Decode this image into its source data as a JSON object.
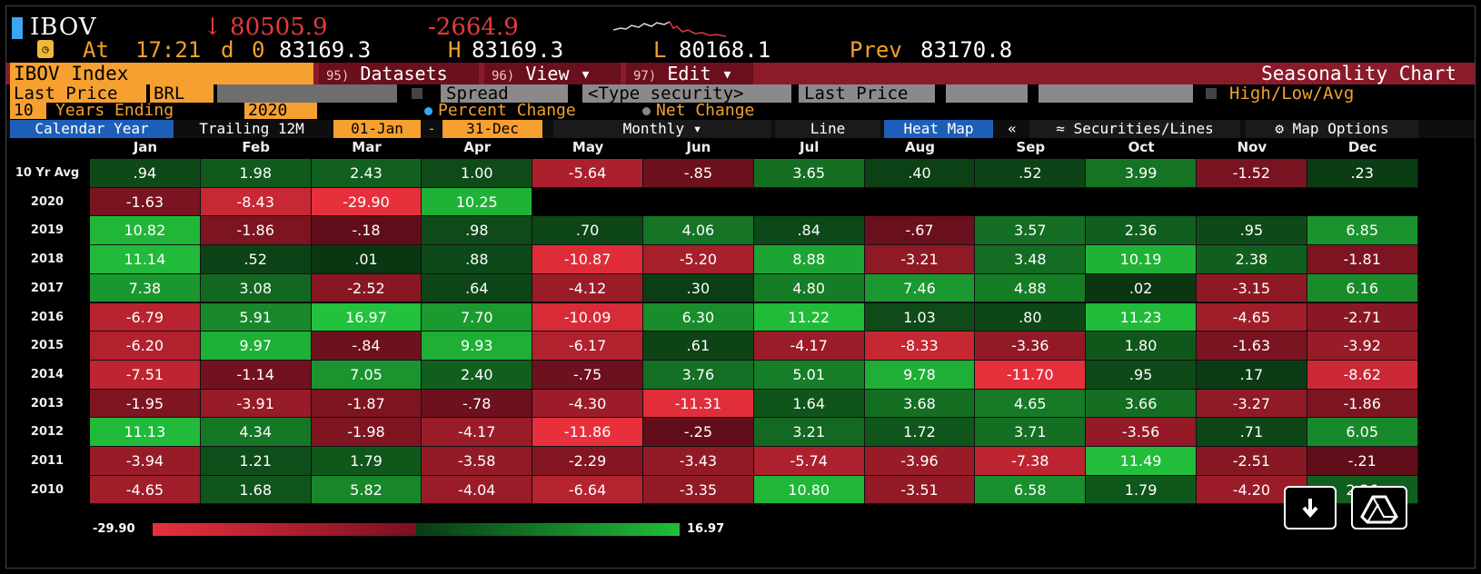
{
  "header": {
    "ticker": "IBOV",
    "last_value": "↓ 80505.9",
    "net_change": "-2664.9",
    "at_label": "At",
    "time": "17:21",
    "d_label": "d",
    "d_value": "0",
    "open_value": "83169.3",
    "high_label": "H",
    "high_value": "83169.3",
    "low_label": "L",
    "low_value": "80168.1",
    "prev_label": "Prev",
    "prev_value": "83170.8"
  },
  "toolbar": {
    "index_name": "IBOV Index",
    "datasets_num": "95)",
    "datasets": "Datasets",
    "view_num": "96)",
    "view": "View ▾",
    "edit_num": "97)",
    "edit": "Edit ▾",
    "chart_title": "Seasonality Chart",
    "last_price": "Last Price",
    "currency": "BRL",
    "spread": "Spread",
    "type_security": "<Type security>",
    "last_price_2": "Last Price",
    "high_low_avg": "High/Low/Avg",
    "years_count": "10",
    "years_ending": "Years Ending",
    "year_end": "2020",
    "percent_change": "Percent Change",
    "net_change_opt": "Net Change",
    "calendar_year": "Calendar Year",
    "trailing": "Trailing 12M",
    "date_from": "01-Jan",
    "date_sep": "-",
    "date_to": "31-Dec",
    "monthly": "Monthly ▾",
    "line": "Line",
    "heat_map": "Heat Map",
    "collapse": "«",
    "securities_lines": "Securities/Lines",
    "map_options": "Map Options"
  },
  "chart_data": {
    "type": "heatmap",
    "columns": [
      "Jan",
      "Feb",
      "Mar",
      "Apr",
      "May",
      "Jun",
      "Jul",
      "Aug",
      "Sep",
      "Oct",
      "Nov",
      "Dec"
    ],
    "rows": [
      {
        "label": "10 Yr Avg",
        "values": [
          ".94",
          "1.98",
          "2.43",
          "1.00",
          "-5.64",
          "-.85",
          "3.65",
          ".40",
          ".52",
          "3.99",
          "-1.52",
          ".23"
        ]
      },
      {
        "label": "2020",
        "values": [
          "-1.63",
          "-8.43",
          "-29.90",
          "10.25",
          null,
          null,
          null,
          null,
          null,
          null,
          null,
          null
        ]
      },
      {
        "label": "2019",
        "values": [
          "10.82",
          "-1.86",
          "-.18",
          ".98",
          ".70",
          "4.06",
          ".84",
          "-.67",
          "3.57",
          "2.36",
          ".95",
          "6.85"
        ]
      },
      {
        "label": "2018",
        "values": [
          "11.14",
          ".52",
          ".01",
          ".88",
          "-10.87",
          "-5.20",
          "8.88",
          "-3.21",
          "3.48",
          "10.19",
          "2.38",
          "-1.81"
        ]
      },
      {
        "label": "2017",
        "values": [
          "7.38",
          "3.08",
          "-2.52",
          ".64",
          "-4.12",
          ".30",
          "4.80",
          "7.46",
          "4.88",
          ".02",
          "-3.15",
          "6.16"
        ]
      },
      {
        "label": "2016",
        "values": [
          "-6.79",
          "5.91",
          "16.97",
          "7.70",
          "-10.09",
          "6.30",
          "11.22",
          "1.03",
          ".80",
          "11.23",
          "-4.65",
          "-2.71"
        ]
      },
      {
        "label": "2015",
        "values": [
          "-6.20",
          "9.97",
          "-.84",
          "9.93",
          "-6.17",
          ".61",
          "-4.17",
          "-8.33",
          "-3.36",
          "1.80",
          "-1.63",
          "-3.92"
        ]
      },
      {
        "label": "2014",
        "values": [
          "-7.51",
          "-1.14",
          "7.05",
          "2.40",
          "-.75",
          "3.76",
          "5.01",
          "9.78",
          "-11.70",
          ".95",
          ".17",
          "-8.62"
        ]
      },
      {
        "label": "2013",
        "values": [
          "-1.95",
          "-3.91",
          "-1.87",
          "-.78",
          "-4.30",
          "-11.31",
          "1.64",
          "3.68",
          "4.65",
          "3.66",
          "-3.27",
          "-1.86"
        ]
      },
      {
        "label": "2012",
        "values": [
          "11.13",
          "4.34",
          "-1.98",
          "-4.17",
          "-11.86",
          "-.25",
          "3.21",
          "1.72",
          "3.71",
          "-3.56",
          ".71",
          "6.05"
        ]
      },
      {
        "label": "2011",
        "values": [
          "-3.94",
          "1.21",
          "1.79",
          "-3.58",
          "-2.29",
          "-3.43",
          "-5.74",
          "-3.96",
          "-7.38",
          "11.49",
          "-2.51",
          "-.21"
        ]
      },
      {
        "label": "2010",
        "values": [
          "-4.65",
          "1.68",
          "5.82",
          "-4.04",
          "-6.64",
          "-3.35",
          "10.80",
          "-3.51",
          "6.58",
          "1.79",
          "-4.20",
          "2.36"
        ]
      }
    ],
    "scale_min": "-29.90",
    "scale_max": "16.97",
    "colors": {
      "negative_strong": "#e8303c",
      "negative_weak": "#5a0c18",
      "positive_weak": "#0a3512",
      "positive_strong": "#22c23c"
    }
  }
}
